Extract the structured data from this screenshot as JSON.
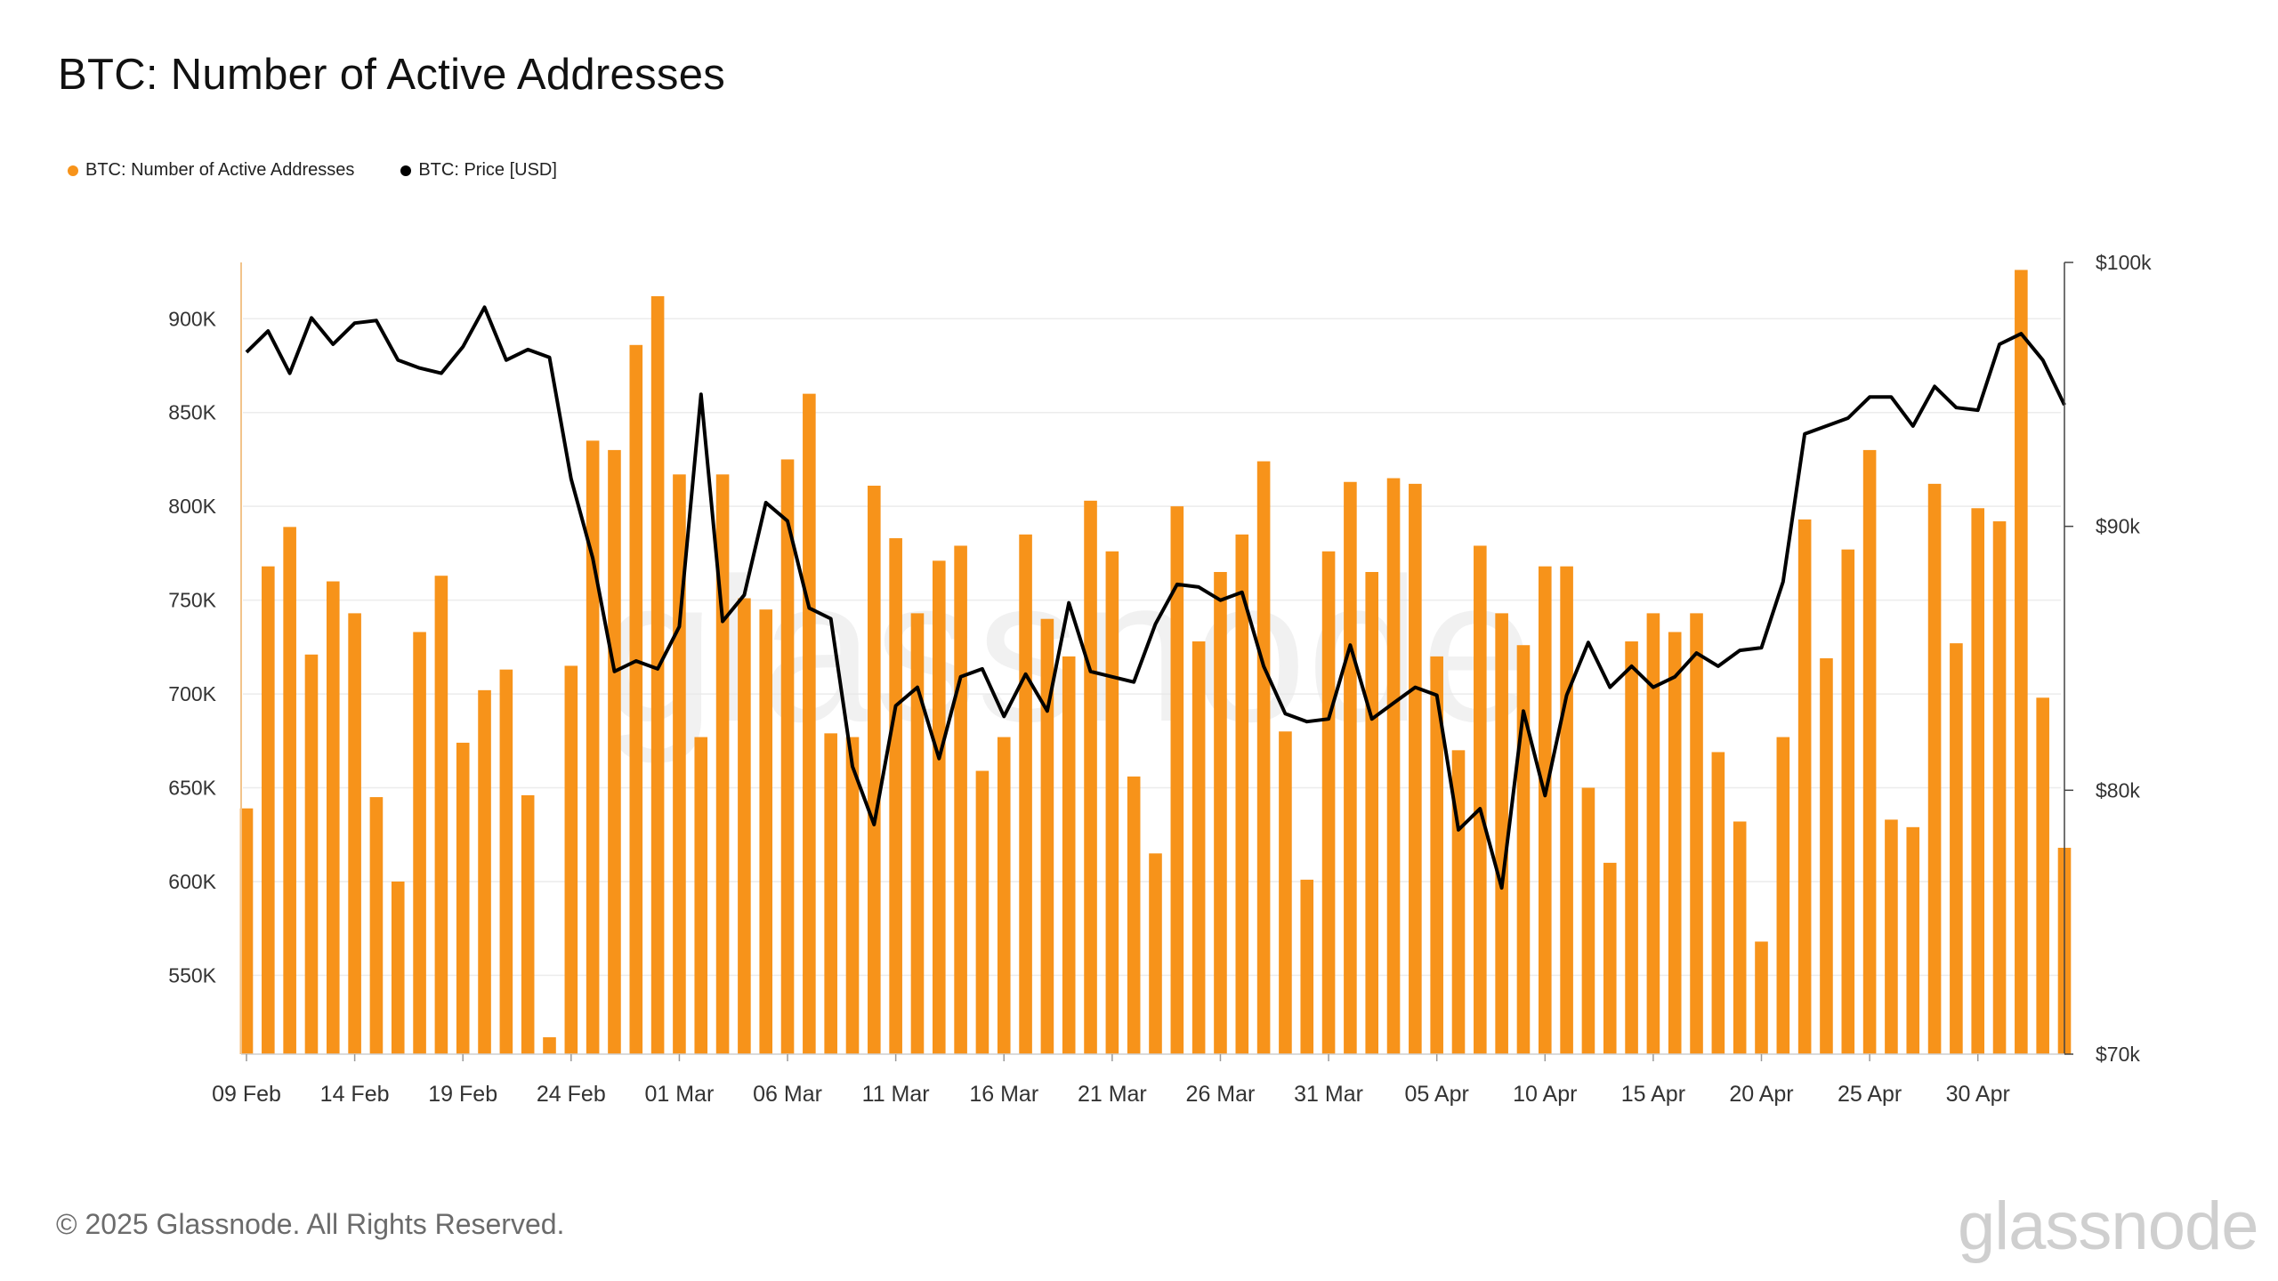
{
  "title": "BTC: Number of Active Addresses",
  "legend": {
    "items": [
      {
        "label": "BTC: Number of Active Addresses",
        "color": "#f7931a"
      },
      {
        "label": "BTC: Price [USD]",
        "color": "#000000"
      }
    ]
  },
  "footer": {
    "copyright": "© 2025 Glassnode. All Rights Reserved."
  },
  "watermark": {
    "brand": "glassnode"
  },
  "chart_data": {
    "type": "bar+line",
    "series": [
      {
        "name": "BTC: Number of Active Addresses",
        "type": "bar",
        "axis": "left",
        "color": "#f7931a",
        "values": [
          639000,
          768000,
          789000,
          721000,
          760000,
          743000,
          645000,
          600000,
          733000,
          763000,
          674000,
          702000,
          713000,
          646000,
          517000,
          715000,
          835000,
          830000,
          886000,
          912000,
          817000,
          677000,
          817000,
          751000,
          745000,
          825000,
          860000,
          679000,
          677000,
          811000,
          783000,
          743000,
          771000,
          779000,
          659000,
          677000,
          785000,
          740000,
          720000,
          803000,
          776000,
          656000,
          615000,
          800000,
          728000,
          765000,
          785000,
          824000,
          680000,
          601000,
          776000,
          813000,
          765000,
          815000,
          812000,
          720000,
          670000,
          779000,
          743000,
          726000,
          768000,
          768000,
          650000,
          610000,
          728000,
          743000,
          733000,
          743000,
          669000,
          632000,
          568000,
          677000,
          793000,
          719000,
          777000,
          830000,
          633000,
          629000,
          812000,
          727000,
          799000,
          792000,
          926000,
          698000,
          618000
        ]
      },
      {
        "name": "BTC: Price [USD]",
        "type": "line",
        "axis": "right",
        "color": "#000000",
        "values": [
          96600,
          97400,
          95800,
          97900,
          96900,
          97700,
          97800,
          96300,
          96000,
          95800,
          96800,
          98300,
          96300,
          96700,
          96400,
          91800,
          88800,
          84500,
          84900,
          84600,
          86200,
          95000,
          86400,
          87400,
          90900,
          90200,
          86900,
          86500,
          80900,
          78700,
          83200,
          83900,
          81200,
          84300,
          84600,
          82800,
          84400,
          83000,
          87100,
          84500,
          84300,
          84100,
          86300,
          87800,
          87700,
          87200,
          87500,
          84700,
          82900,
          82600,
          82700,
          85500,
          82700,
          83300,
          83900,
          83600,
          78500,
          79300,
          76300,
          83000,
          79800,
          83600,
          85600,
          83900,
          84700,
          83900,
          84300,
          85200,
          84700,
          85300,
          85400,
          87900,
          93500,
          93800,
          94100,
          94900,
          94900,
          93800,
          95300,
          94500,
          94400,
          96900,
          97300,
          96300,
          94600
        ]
      }
    ],
    "x": {
      "start_label": "09 Feb",
      "tick_labels": [
        "09 Feb",
        "14 Feb",
        "19 Feb",
        "24 Feb",
        "01 Mar",
        "06 Mar",
        "11 Mar",
        "16 Mar",
        "21 Mar",
        "26 Mar",
        "31 Mar",
        "05 Apr",
        "10 Apr",
        "15 Apr",
        "20 Apr",
        "25 Apr",
        "30 Apr"
      ],
      "tick_every_days": 5
    },
    "y_left": {
      "ticks": [
        550000,
        600000,
        650000,
        700000,
        750000,
        800000,
        850000,
        900000
      ],
      "tick_labels": [
        "550K",
        "600K",
        "650K",
        "700K",
        "750K",
        "800K",
        "850K",
        "900K"
      ],
      "range": [
        508000,
        930000
      ]
    },
    "y_right": {
      "ticks": [
        70000,
        80000,
        90000,
        100000
      ],
      "tick_labels": [
        "$70k",
        "$80k",
        "$90k",
        "$100k"
      ],
      "range": [
        70000,
        100000
      ]
    },
    "grid": true
  }
}
